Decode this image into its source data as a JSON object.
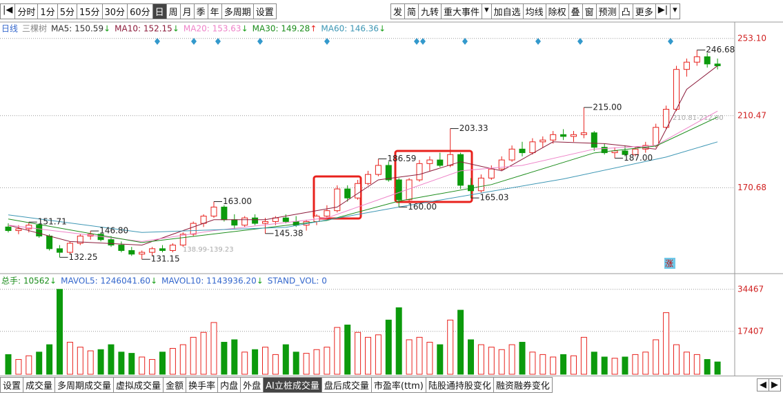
{
  "toolbar": {
    "left": [
      "|◀",
      "分时",
      "1分",
      "5分",
      "15分",
      "30分",
      "60分",
      "日",
      "周",
      "月",
      "季",
      "年",
      "多周期",
      "设置"
    ],
    "selected": "日",
    "right": [
      "发",
      "简",
      "九转",
      "重大事件",
      "▾",
      "加自选",
      "均线",
      "除权",
      "叠",
      "窗",
      "预测",
      "凸",
      "更多",
      "▶|",
      "▾"
    ]
  },
  "legend": {
    "period": "日线",
    "name": "三棵树",
    "items": [
      {
        "text": "MA5: 150.59",
        "arrow": "↓",
        "color": "#333333",
        "arrow_color": "#1aa01a"
      },
      {
        "text": "MA10: 152.15",
        "arrow": "↓",
        "color": "#8b1a3a",
        "arrow_color": "#1aa01a"
      },
      {
        "text": "MA20: 153.63",
        "arrow": "↓",
        "color": "#ee82c8",
        "arrow_color": "#1aa01a"
      },
      {
        "text": "MA30: 149.28",
        "arrow": "↑",
        "color": "#1a8c1a",
        "arrow_color": "#e8211c"
      },
      {
        "text": "MA60: 146.36",
        "arrow": "↓",
        "color": "#3c96b4",
        "arrow_color": "#1aa01a"
      }
    ]
  },
  "chart_data": {
    "type": "candlestick",
    "open": [
      149,
      147,
      148,
      150,
      144,
      137,
      135,
      140,
      144,
      145,
      142,
      139,
      136,
      134,
      135,
      137,
      136,
      139,
      145,
      151,
      155,
      160,
      153,
      150,
      154,
      151,
      152,
      154,
      152,
      150,
      152,
      155,
      158,
      170,
      165,
      173,
      178,
      183,
      175,
      164,
      175,
      184,
      186,
      183,
      189,
      172,
      169,
      176,
      181,
      186,
      192,
      190,
      196,
      197,
      200,
      199,
      200,
      201,
      193,
      190,
      191,
      189,
      192,
      194,
      204,
      214,
      236,
      240,
      243,
      239
    ],
    "high": [
      151,
      150,
      151.71,
      151,
      145,
      139,
      141,
      145,
      146.8,
      146,
      144,
      141,
      138,
      136,
      138,
      139,
      140,
      146,
      152,
      156,
      163,
      161,
      156,
      155,
      156,
      154,
      155,
      156,
      155,
      153,
      156,
      161,
      172,
      172,
      175,
      180,
      186.59,
      185,
      176,
      176,
      186,
      188,
      190,
      203.33,
      190,
      176,
      178,
      183,
      188,
      194,
      196,
      198,
      199,
      202,
      203,
      202,
      215,
      202,
      195,
      193,
      194,
      193,
      196,
      206,
      216,
      238,
      242,
      246.68,
      245,
      242
    ],
    "low": [
      146,
      145,
      146,
      143,
      136,
      132.25,
      134,
      139,
      142,
      141,
      138,
      135,
      133,
      131.15,
      133,
      135,
      135,
      138,
      144,
      149,
      154,
      152,
      148,
      149,
      150,
      145.38,
      150,
      151,
      149,
      147,
      150,
      154,
      157,
      163,
      164,
      172,
      177,
      174,
      160,
      163,
      174,
      180,
      182,
      182,
      170,
      165.03,
      168,
      175,
      180,
      185,
      188,
      189,
      193,
      195,
      197,
      196,
      198,
      191,
      189,
      187,
      188,
      188,
      190,
      193,
      203,
      213,
      232,
      238,
      237,
      236
    ],
    "close": [
      147,
      148,
      150,
      144,
      137,
      135,
      140,
      144,
      145,
      142,
      139,
      136,
      134,
      135,
      137,
      136,
      139,
      145,
      151,
      155,
      160,
      153,
      150,
      154,
      151,
      152,
      154,
      152,
      150,
      152,
      155,
      158,
      170,
      165,
      173,
      178,
      183,
      175,
      164,
      175,
      184,
      186,
      183,
      189,
      172,
      169,
      176,
      181,
      186,
      192,
      190,
      196,
      197,
      200,
      199,
      200,
      201,
      193,
      190,
      191,
      189,
      192,
      194,
      204,
      214,
      236,
      240,
      243,
      239,
      238
    ],
    "up_color": "#e8211c",
    "down_color": "#0c9a0c",
    "ylim": [
      124,
      261
    ],
    "yticks": [
      {
        "value": 253.1,
        "label": "253.10"
      },
      210.47,
      170.68
    ],
    "grid": true,
    "ma_lines": [
      {
        "name": "MA10",
        "color": "#8b1a3a",
        "x": [
          0,
          6,
          13,
          20,
          25,
          32,
          36,
          40,
          44,
          48,
          53,
          58,
          63,
          66,
          69
        ],
        "values": [
          150,
          141,
          139,
          153,
          153,
          160,
          175,
          178,
          185,
          180,
          196,
          195,
          192,
          225,
          238
        ]
      },
      {
        "name": "MA20",
        "color": "#ee82c8",
        "x": [
          0,
          13,
          20,
          31,
          38,
          44,
          50,
          57,
          63,
          69
        ],
        "values": [
          150,
          141,
          147,
          154,
          168,
          180,
          183,
          192,
          194,
          213
        ]
      },
      {
        "name": "MA30",
        "color": "#1a8c1a",
        "x": [
          0,
          13,
          31,
          38,
          47,
          57,
          63,
          69
        ],
        "values": [
          153.4,
          140.4,
          152.6,
          163.3,
          172.4,
          189.9,
          193.7,
          209.7
        ]
      },
      {
        "name": "MA60",
        "color": "#3c96b4",
        "x": [
          0,
          13,
          27,
          38,
          54,
          64,
          69
        ],
        "values": [
          155.7,
          146,
          148.8,
          160,
          175.5,
          187.6,
          196
        ]
      }
    ],
    "annotations": [
      246.68,
      {
        "value": 215,
        "label": "215.00"
      },
      203.33,
      186.59,
      {
        "value": 163,
        "label": "163.00"
      },
      151.71,
      {
        "value": 146.8,
        "label": "146.80"
      },
      145.38,
      132.25,
      131.15,
      {
        "value": 160,
        "label": "160.00"
      },
      165.03,
      {
        "value": 187,
        "label": "187.00"
      }
    ],
    "range_labels": [
      "138.99-139.23",
      "210.81-212.00"
    ],
    "marker": "涨",
    "volume": {
      "values": [
        8000,
        6000,
        7500,
        9000,
        12000,
        34467,
        13000,
        11000,
        9500,
        10000,
        12000,
        9000,
        8500,
        7000,
        6000,
        9000,
        10500,
        12000,
        15000,
        17000,
        21000,
        13000,
        14000,
        9000,
        10000,
        11000,
        8000,
        12000,
        9000,
        8500,
        10000,
        11000,
        19000,
        20000,
        17000,
        15000,
        16000,
        22000,
        27000,
        14000,
        15000,
        13000,
        12000,
        22000,
        26000,
        14000,
        12000,
        11000,
        10000,
        12000,
        13000,
        9000,
        8000,
        7000,
        8000,
        7500,
        15000,
        9000,
        7000,
        6500,
        7000,
        8000,
        9000,
        14000,
        25000,
        12000,
        9000,
        8000,
        6000,
        5000
      ],
      "ylim": [
        0,
        40000
      ],
      "yticks": [
        34467,
        17407
      ],
      "legend": [
        {
          "text": "总手: 10562",
          "arrow": "↓"
        },
        {
          "text": "MAVOL5: 1246041.60",
          "arrow": "↓"
        },
        {
          "text": "MAVOL10: 1143936.20",
          "arrow": "↓"
        },
        {
          "text": "STAND_VOL: 0",
          "arrow": ""
        }
      ]
    }
  },
  "tabs": {
    "items": [
      "设置",
      "成交量",
      "多周期成交量",
      "虚拟成交量",
      "金额",
      "换手率",
      "内盘",
      "外盘",
      "AI立桩成交量",
      "盘后成交量",
      "市盈率(ttm)",
      "陆股通持股变化",
      "融资融券变化"
    ],
    "selected": "AI立桩成交量",
    "arrows": [
      "◀",
      "▶"
    ]
  }
}
